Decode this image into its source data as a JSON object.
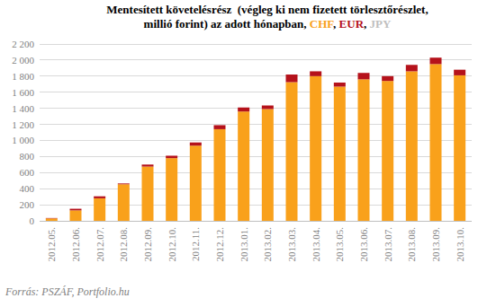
{
  "chart_data": {
    "type": "bar",
    "stacked": true,
    "grid": true,
    "title": "Mentesített követelésrész  (végleg ki nem fizetett törlesztőrészlet, millió forint) az adott hónapban, CHF, EUR, JPY",
    "source": "Forrás: PSZÁF, Portfolio.hu",
    "categories": [
      "2012.05.",
      "2012.06.",
      "2012.07.",
      "2012.08.",
      "2012.09.",
      "2012.10.",
      "2012.11.",
      "2012.12.",
      "2013.01.",
      "2013.02.",
      "2013.03.",
      "2013.04.",
      "2013.05.",
      "2013.06.",
      "2013.07.",
      "2013.08.",
      "2013.09.",
      "2013.10."
    ],
    "series": [
      {
        "name": "CHF",
        "color": "#f9a11b",
        "values": [
          30,
          130,
          280,
          455,
          675,
          780,
          935,
          1140,
          1360,
          1390,
          1725,
          1800,
          1670,
          1760,
          1740,
          1860,
          1950,
          1810
        ]
      },
      {
        "name": "EUR",
        "color": "#b5121b",
        "values": [
          5,
          20,
          25,
          10,
          25,
          30,
          40,
          50,
          50,
          45,
          95,
          60,
          50,
          80,
          60,
          80,
          80,
          70
        ]
      },
      {
        "name": "JPY",
        "color": "#bfbfbf",
        "values": [
          0,
          0,
          0,
          0,
          0,
          0,
          0,
          0,
          0,
          0,
          0,
          0,
          0,
          0,
          0,
          0,
          0,
          0
        ]
      }
    ],
    "ylim": [
      0,
      2200
    ],
    "yticks": [
      0,
      200,
      400,
      600,
      800,
      {
        "value": 1000,
        "label": "1 000"
      },
      {
        "value": 1200,
        "label": "1 200"
      },
      {
        "value": 1400,
        "label": "1 400"
      },
      {
        "value": 1600,
        "label": "1 600"
      },
      {
        "value": 1800,
        "label": "1 800"
      },
      {
        "value": 2000,
        "label": "2 000"
      },
      {
        "value": 2200,
        "label": "2 200"
      }
    ]
  }
}
